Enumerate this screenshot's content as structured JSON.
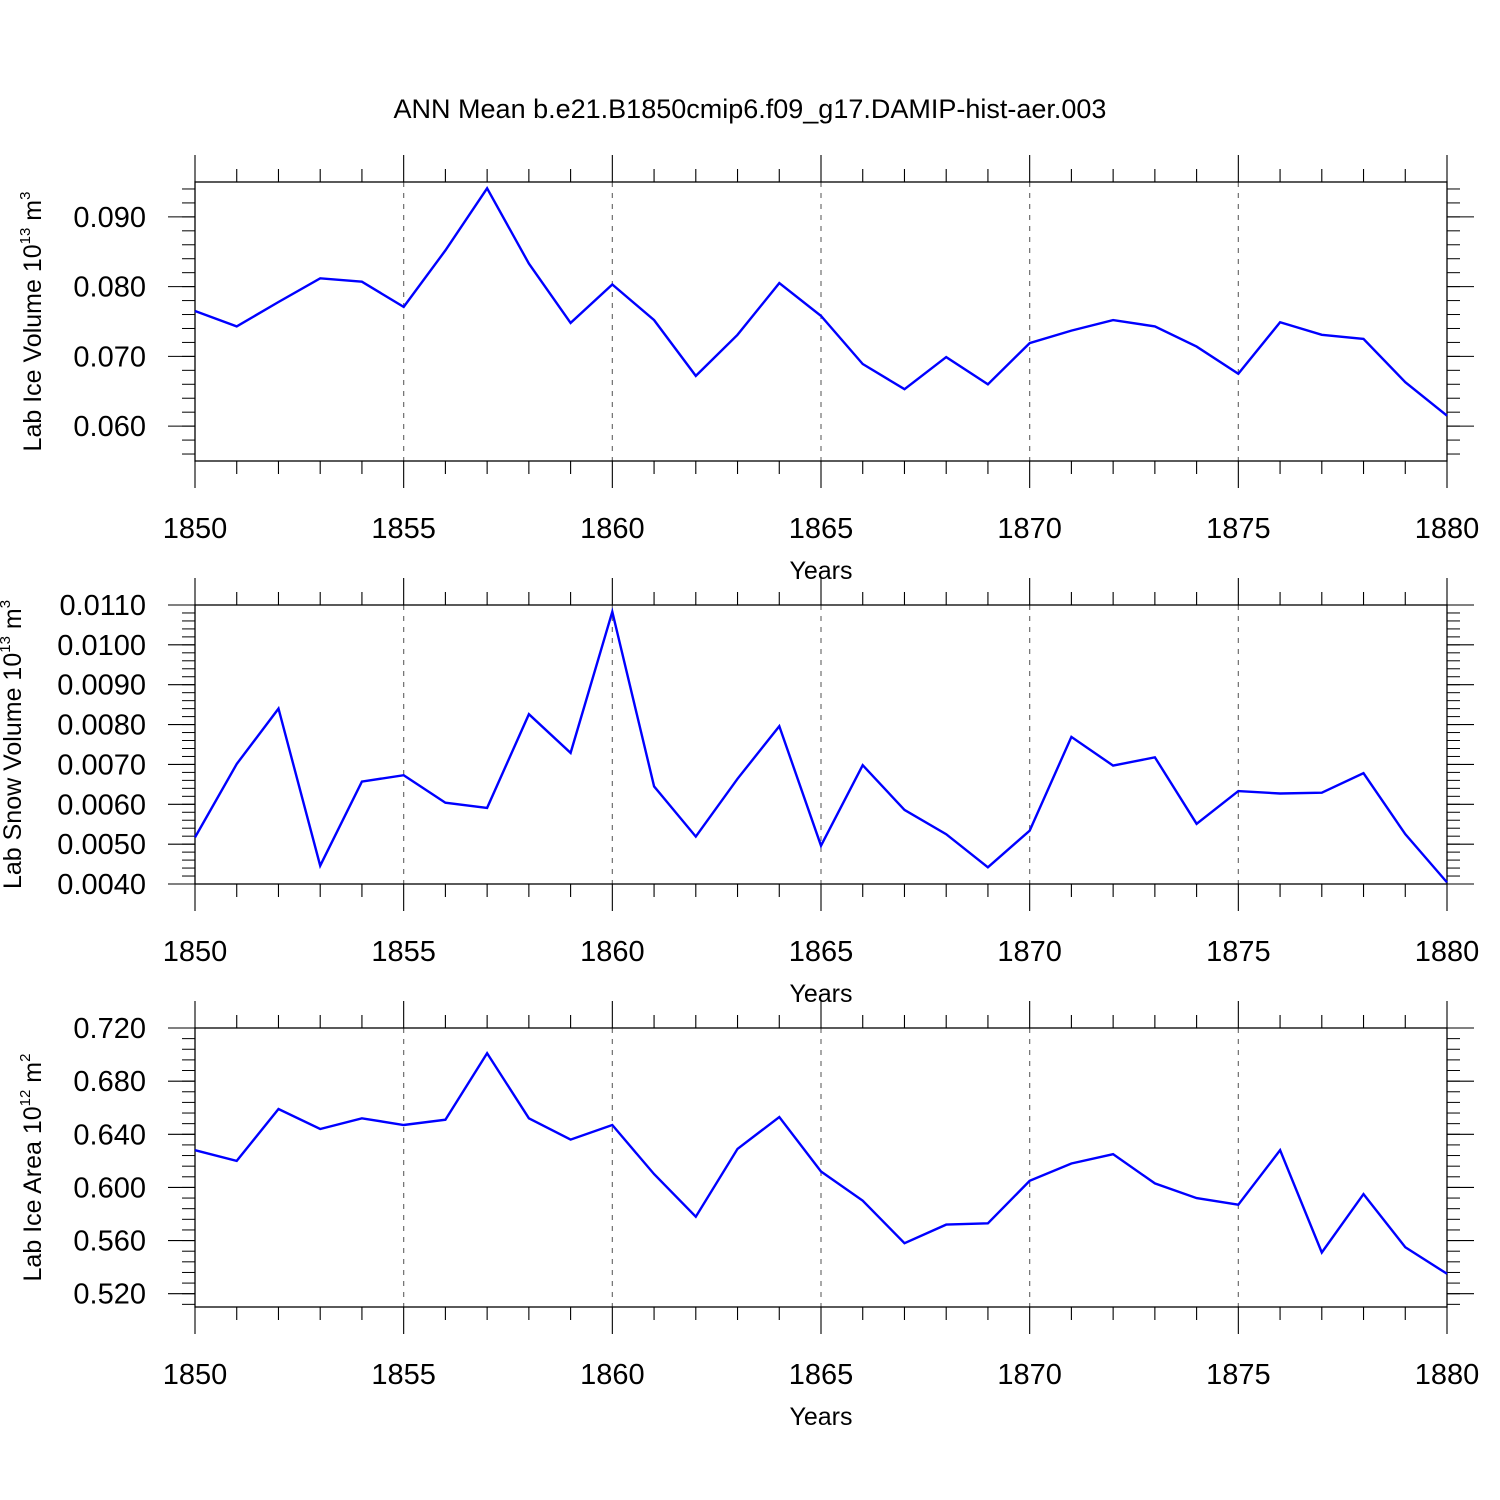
{
  "figure": {
    "title": "ANN Mean b.e21.B1850cmip6.f09_g17.DAMIP-hist-aer.003"
  },
  "chart_data": [
    {
      "type": "line",
      "xlabel": "Years",
      "ylabel": {
        "text": "Lab Ice Volume 10",
        "exponent": "13",
        "unit": " m",
        "unit_exponent": "3"
      },
      "xlim": [
        1850,
        1880
      ],
      "ylim": [
        0.055,
        0.095
      ],
      "xticks": [
        1850,
        1855,
        1860,
        1865,
        1870,
        1875,
        1880
      ],
      "xtick_labels": [
        "1850",
        "1855",
        "1860",
        "1865",
        "1870",
        "1875",
        "1880"
      ],
      "yticks": [
        0.06,
        0.07,
        0.08,
        0.09
      ],
      "ytick_labels": [
        "0.060",
        "0.070",
        "0.080",
        "0.090"
      ],
      "yminor_step": 0.002,
      "line_color": "#0000ff",
      "grid": "dashed vertical at major x ticks",
      "x": [
        1850,
        1851,
        1852,
        1853,
        1854,
        1855,
        1856,
        1857,
        1858,
        1859,
        1860,
        1861,
        1862,
        1863,
        1864,
        1865,
        1866,
        1867,
        1868,
        1869,
        1870,
        1871,
        1872,
        1873,
        1874,
        1875,
        1876,
        1877,
        1878,
        1879,
        1880
      ],
      "values": [
        0.0765,
        0.0743,
        0.0778,
        0.0812,
        0.0807,
        0.0771,
        0.0852,
        0.0941,
        0.0833,
        0.0748,
        0.0803,
        0.0752,
        0.0672,
        0.0731,
        0.0805,
        0.0758,
        0.0689,
        0.0653,
        0.0699,
        0.066,
        0.0719,
        0.0737,
        0.0752,
        0.0743,
        0.0714,
        0.0675,
        0.0749,
        0.0731,
        0.0725,
        0.0663,
        0.0615
      ]
    },
    {
      "type": "line",
      "xlabel": "Years",
      "ylabel": {
        "text": "Lab Snow Volume 10",
        "exponent": "13",
        "unit": " m",
        "unit_exponent": "3"
      },
      "xlim": [
        1850,
        1880
      ],
      "ylim": [
        0.004,
        0.011
      ],
      "xticks": [
        1850,
        1855,
        1860,
        1865,
        1870,
        1875,
        1880
      ],
      "xtick_labels": [
        "1850",
        "1855",
        "1860",
        "1865",
        "1870",
        "1875",
        "1880"
      ],
      "yticks": [
        0.004,
        0.005,
        0.006,
        0.007,
        0.008,
        0.009,
        0.01,
        0.011
      ],
      "ytick_labels": [
        "0.0040",
        "0.0050",
        "0.0060",
        "0.0070",
        "0.0080",
        "0.0090",
        "0.0100",
        "0.0110"
      ],
      "yminor_step": 0.0002,
      "line_color": "#0000ff",
      "grid": "dashed vertical at major x ticks",
      "x": [
        1850,
        1851,
        1852,
        1853,
        1854,
        1855,
        1856,
        1857,
        1858,
        1859,
        1860,
        1861,
        1862,
        1863,
        1864,
        1865,
        1866,
        1867,
        1868,
        1869,
        1870,
        1871,
        1872,
        1873,
        1874,
        1875,
        1876,
        1877,
        1878,
        1879,
        1880
      ],
      "values": [
        0.00517,
        0.00701,
        0.0084,
        0.00446,
        0.00657,
        0.00673,
        0.00604,
        0.00591,
        0.00826,
        0.00729,
        0.01083,
        0.00645,
        0.00519,
        0.00664,
        0.00796,
        0.00496,
        0.00698,
        0.00586,
        0.00525,
        0.00442,
        0.00534,
        0.00769,
        0.00697,
        0.00718,
        0.00551,
        0.00633,
        0.00627,
        0.00629,
        0.00678,
        0.00525,
        0.00404
      ]
    },
    {
      "type": "line",
      "xlabel": "Years",
      "ylabel": {
        "text": "Lab Ice Area 10",
        "exponent": "12",
        "unit": " m",
        "unit_exponent": "2"
      },
      "xlim": [
        1850,
        1880
      ],
      "ylim": [
        0.51,
        0.72
      ],
      "xticks": [
        1850,
        1855,
        1860,
        1865,
        1870,
        1875,
        1880
      ],
      "xtick_labels": [
        "1850",
        "1855",
        "1860",
        "1865",
        "1870",
        "1875",
        "1880"
      ],
      "yticks": [
        0.52,
        0.56,
        0.6,
        0.64,
        0.68,
        0.72
      ],
      "ytick_labels": [
        "0.520",
        "0.560",
        "0.600",
        "0.640",
        "0.680",
        "0.720"
      ],
      "yminor_step": 0.008,
      "line_color": "#0000ff",
      "grid": "dashed vertical at major x ticks",
      "x": [
        1850,
        1851,
        1852,
        1853,
        1854,
        1855,
        1856,
        1857,
        1858,
        1859,
        1860,
        1861,
        1862,
        1863,
        1864,
        1865,
        1866,
        1867,
        1868,
        1869,
        1870,
        1871,
        1872,
        1873,
        1874,
        1875,
        1876,
        1877,
        1878,
        1879,
        1880
      ],
      "values": [
        0.628,
        0.62,
        0.659,
        0.644,
        0.652,
        0.647,
        0.651,
        0.701,
        0.652,
        0.636,
        0.647,
        0.61,
        0.578,
        0.629,
        0.653,
        0.612,
        0.59,
        0.558,
        0.572,
        0.573,
        0.605,
        0.618,
        0.625,
        0.603,
        0.592,
        0.587,
        0.628,
        0.551,
        0.595,
        0.555,
        0.535
      ]
    }
  ]
}
